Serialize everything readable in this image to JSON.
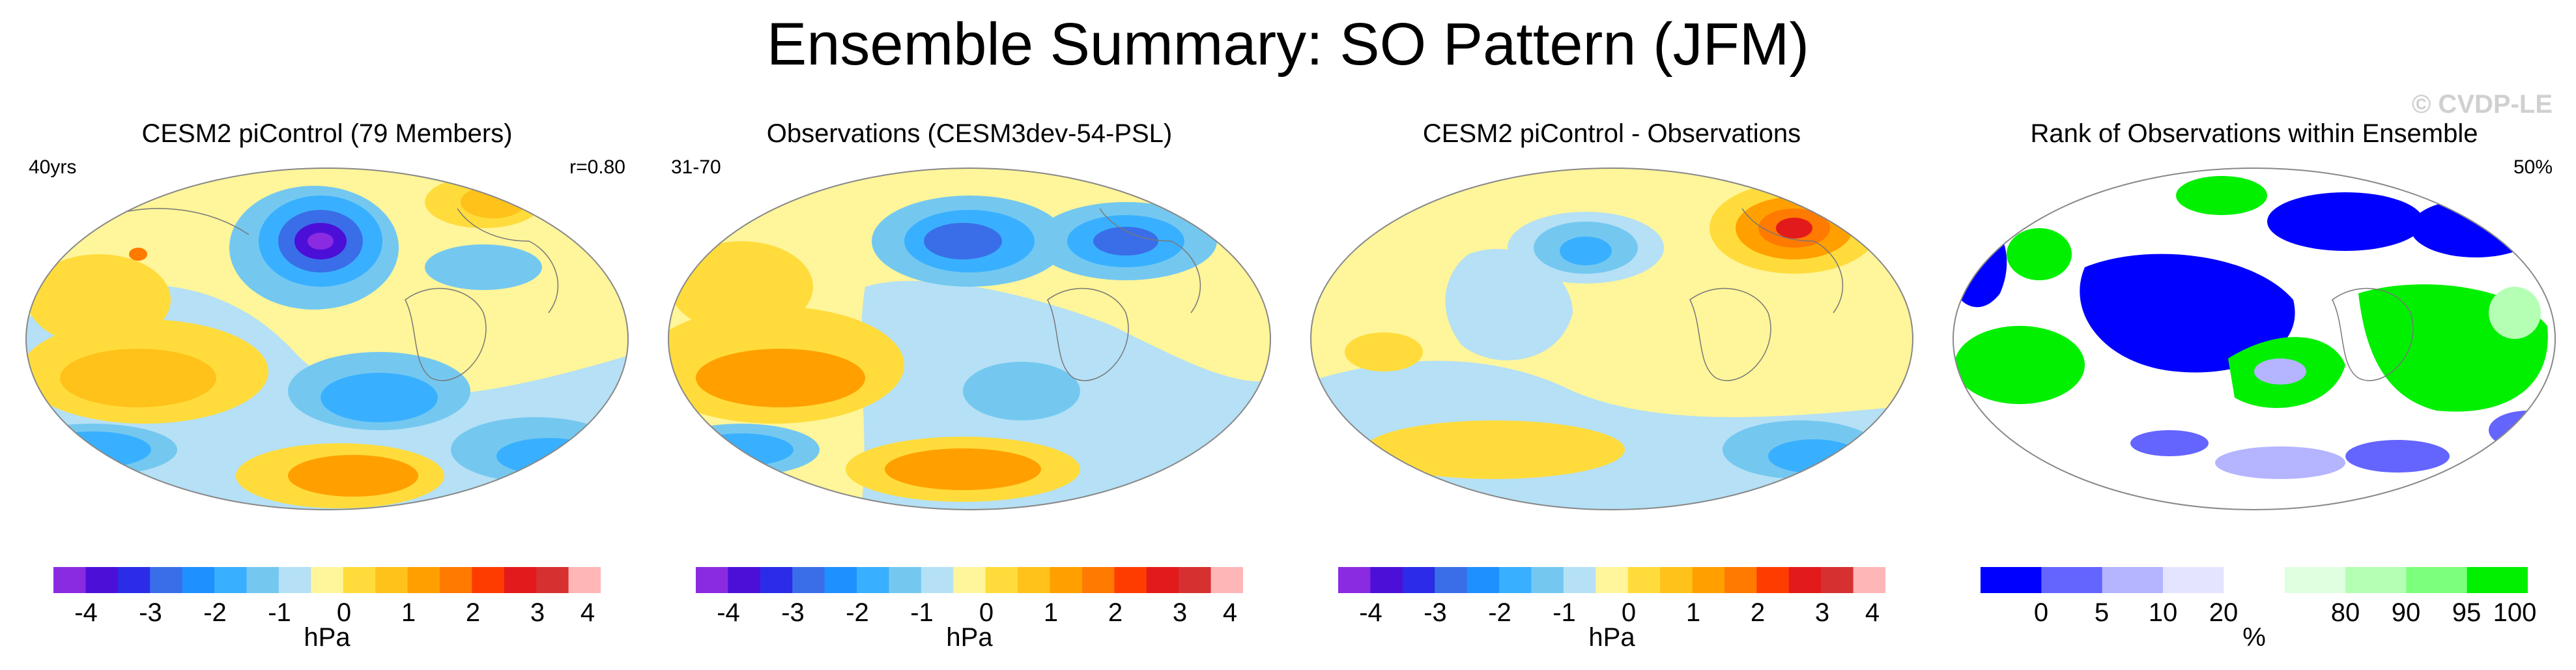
{
  "title": "Ensemble Summary: SO Pattern (JFM)",
  "watermark": "© CVDP-LE",
  "panels": [
    {
      "title": "CESM2 piControl (79 Members)",
      "left_label": "40yrs",
      "right_label": "r=0.80",
      "unit": "hPa"
    },
    {
      "title": "Observations (CESM3dev-54-PSL)",
      "left_label": "31-70",
      "right_label": "",
      "unit": "hPa"
    },
    {
      "title": "CESM2 piControl - Observations",
      "left_label": "",
      "right_label": "",
      "unit": "hPa"
    },
    {
      "title": "Rank of Observations within Ensemble",
      "left_label": "",
      "right_label": "50%",
      "unit": "%"
    }
  ],
  "colorbar_hpa": {
    "colors": [
      "#8a2be2",
      "#4b0fd8",
      "#2b2be8",
      "#3a6ee8",
      "#1e90ff",
      "#39b0ff",
      "#74c8f0",
      "#b5e0f5",
      "#fff59a",
      "#ffdc3c",
      "#ffc21a",
      "#ffa000",
      "#ff7a00",
      "#ff3c00",
      "#e31a1c",
      "#d73030",
      "#ffb6b6"
    ],
    "ticks": [
      "-4",
      "-3",
      "-2",
      "-1",
      "0",
      "1",
      "2",
      "3",
      "4"
    ]
  },
  "colorbar_rank": {
    "colors": [
      "#0000ff",
      "#6464ff",
      "#b4b4ff",
      "#e4e4ff",
      "#ffffff",
      "#e0ffe0",
      "#b4ffb4",
      "#7cff7c",
      "#00f000"
    ],
    "ticks": [
      "0",
      "5",
      "10",
      "20",
      "80",
      "90",
      "95",
      "100"
    ]
  }
}
